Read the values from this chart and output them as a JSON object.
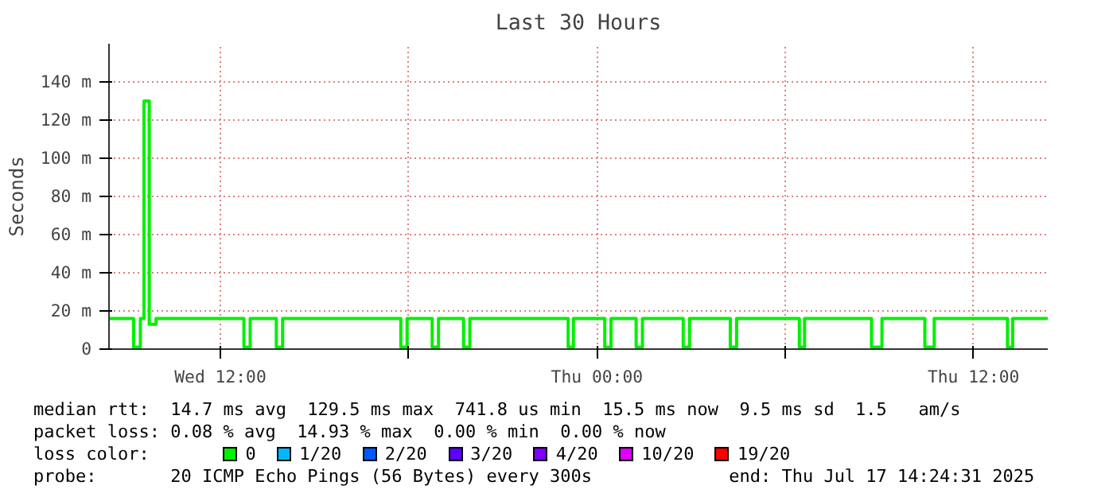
{
  "chart_data": {
    "type": "step",
    "title": "Last 30 Hours",
    "ylabel": "Seconds",
    "x": [
      "2025-07-16T08:27",
      "2025-07-16T09:14",
      "2025-07-16T09:27",
      "2025-07-16T09:34",
      "2025-07-16T09:44",
      "2025-07-16T09:57",
      "2025-07-16T12:45",
      "2025-07-16T12:57",
      "2025-07-16T13:47",
      "2025-07-16T13:59",
      "2025-07-16T17:45",
      "2025-07-16T17:57",
      "2025-07-16T18:45",
      "2025-07-16T18:57",
      "2025-07-16T19:45",
      "2025-07-16T19:57",
      "2025-07-16T23:05",
      "2025-07-16T23:15",
      "2025-07-17T00:15",
      "2025-07-17T00:27",
      "2025-07-17T01:15",
      "2025-07-17T01:27",
      "2025-07-17T02:45",
      "2025-07-17T02:57",
      "2025-07-17T04:15",
      "2025-07-17T04:27",
      "2025-07-17T06:27",
      "2025-07-17T06:37",
      "2025-07-17T08:45",
      "2025-07-17T09:05",
      "2025-07-17T10:27",
      "2025-07-17T10:45",
      "2025-07-17T13:05",
      "2025-07-17T13:15",
      "2025-07-17T14:22"
    ],
    "series": [
      {
        "name": "0",
        "color": "#00f000",
        "values": [
          16,
          1,
          16,
          130,
          13,
          16,
          1,
          16,
          1,
          16,
          1,
          16,
          1,
          16,
          1,
          16,
          1,
          16,
          1,
          16,
          1,
          16,
          1,
          16,
          1,
          16,
          1,
          16,
          1,
          16,
          1,
          16,
          1,
          16,
          16
        ]
      },
      {
        "name": "1/20",
        "color": "#00b8ff",
        "values": [
          null,
          null,
          null,
          null,
          null,
          null,
          null,
          null,
          null,
          null,
          null,
          null,
          null,
          null,
          null,
          null,
          null,
          null,
          null,
          null,
          null,
          null,
          null,
          null,
          null,
          null,
          null,
          null,
          null,
          null,
          null,
          null,
          null,
          null,
          null
        ]
      },
      {
        "name": "2/20",
        "color": "#0059ff",
        "values": [
          null,
          null,
          null,
          null,
          null,
          null,
          null,
          null,
          null,
          null,
          null,
          null,
          null,
          null,
          null,
          null,
          null,
          null,
          null,
          null,
          null,
          null,
          null,
          null,
          null,
          null,
          null,
          null,
          null,
          null,
          null,
          null,
          null,
          null,
          null
        ]
      },
      {
        "name": "3/20",
        "color": "#5e00ff",
        "values": [
          null,
          null,
          null,
          null,
          null,
          null,
          null,
          null,
          null,
          null,
          null,
          null,
          null,
          null,
          null,
          null,
          null,
          null,
          null,
          null,
          null,
          null,
          null,
          null,
          null,
          null,
          null,
          null,
          null,
          null,
          null,
          null,
          null,
          null,
          null
        ]
      },
      {
        "name": "4/20",
        "color": "#7e00ff",
        "values": [
          null,
          null,
          null,
          null,
          null,
          null,
          null,
          null,
          null,
          null,
          null,
          null,
          null,
          null,
          null,
          null,
          null,
          null,
          null,
          null,
          null,
          null,
          null,
          null,
          null,
          null,
          null,
          null,
          null,
          null,
          null,
          null,
          null,
          null,
          null
        ]
      },
      {
        "name": "10/20",
        "color": "#dd00ff",
        "values": [
          null,
          null,
          null,
          null,
          null,
          null,
          null,
          null,
          null,
          null,
          null,
          null,
          null,
          null,
          null,
          null,
          null,
          null,
          null,
          null,
          null,
          null,
          null,
          null,
          null,
          null,
          null,
          null,
          null,
          null,
          null,
          null,
          null,
          null,
          null
        ]
      },
      {
        "name": "19/20",
        "color": "#ff0000",
        "values": [
          null,
          null,
          null,
          null,
          null,
          null,
          null,
          null,
          null,
          null,
          null,
          null,
          null,
          null,
          null,
          null,
          null,
          null,
          null,
          null,
          null,
          null,
          null,
          null,
          null,
          null,
          null,
          null,
          null,
          null,
          null,
          null,
          null,
          null,
          null
        ]
      }
    ],
    "xlim": [
      "2025-07-16T08:27",
      "2025-07-17T14:22"
    ],
    "xticks": [
      {
        "value": "2025-07-16T12:00",
        "label": "Wed 12:00"
      },
      {
        "value": "2025-07-16T18:00",
        "label": null
      },
      {
        "value": "2025-07-17T00:00",
        "label": "Thu 00:00"
      },
      {
        "value": "2025-07-17T06:00",
        "label": null
      },
      {
        "value": "2025-07-17T12:00",
        "label": "Thu 12:00"
      }
    ],
    "ylim": [
      0,
      160
    ],
    "yticks": [
      0,
      {
        "value": 20,
        "label": "20 m"
      },
      {
        "value": 40,
        "label": "40 m"
      },
      {
        "value": 60,
        "label": "60 m"
      },
      {
        "value": 80,
        "label": "80 m"
      },
      {
        "value": 100,
        "label": "100 m"
      },
      {
        "value": 120,
        "label": "120 m"
      },
      {
        "value": 140,
        "label": "140 m"
      }
    ],
    "grid": true,
    "legend": "bottom",
    "legend_title": "loss color:",
    "annotations": [
      "median rtt:  14.7 ms avg  129.5 ms max  741.8 us min  15.5 ms now  9.5 ms sd  1.5   am/s",
      "packet loss: 0.08 % avg  14.93 % max  0.00 % min  0.00 % now",
      "probe:       20 ICMP Echo Pings (56 Bytes) every 300s             end: Thu Jul 17 14:24:31 2025"
    ]
  }
}
